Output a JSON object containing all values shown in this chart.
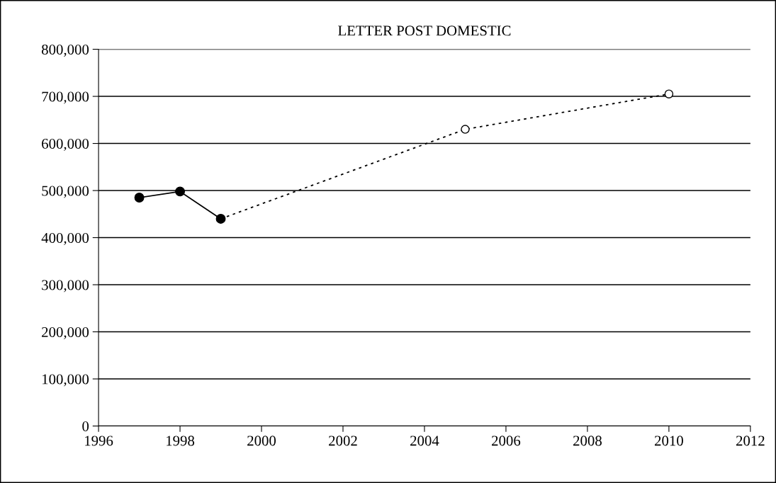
{
  "chart_data": {
    "type": "line",
    "title": "LETTER POST DOMESTIC",
    "series": [
      {
        "color": "#000000",
        "x": [
          1997,
          1998,
          1999
        ],
        "values": [
          485000,
          498000,
          440000
        ],
        "line_style": "solid",
        "marker": "circle"
      },
      {
        "color": "#000000",
        "x": [
          1999,
          2005,
          2010
        ],
        "values": [
          440000,
          630000,
          705000
        ],
        "line_style": "dotted",
        "marker": "circle"
      }
    ],
    "xlim": [
      1996,
      2012
    ],
    "xticks": [
      1996,
      1998,
      2000,
      2002,
      2004,
      2006,
      2008,
      2010,
      2012
    ],
    "ylim": [
      0,
      800000
    ],
    "yticks": [
      {
        "value": 0,
        "label": "0"
      },
      {
        "value": 100000,
        "label": "100,000"
      },
      {
        "value": 200000,
        "label": "200,000"
      },
      {
        "value": 300000,
        "label": "300,000"
      },
      {
        "value": 400000,
        "label": "400,000"
      },
      {
        "value": 500000,
        "label": "500,000"
      },
      {
        "value": 600000,
        "label": "600,000"
      },
      {
        "value": 700000,
        "label": "700,000"
      },
      {
        "value": 800000,
        "label": "800,000"
      }
    ],
    "grid": "y",
    "legend": false
  }
}
